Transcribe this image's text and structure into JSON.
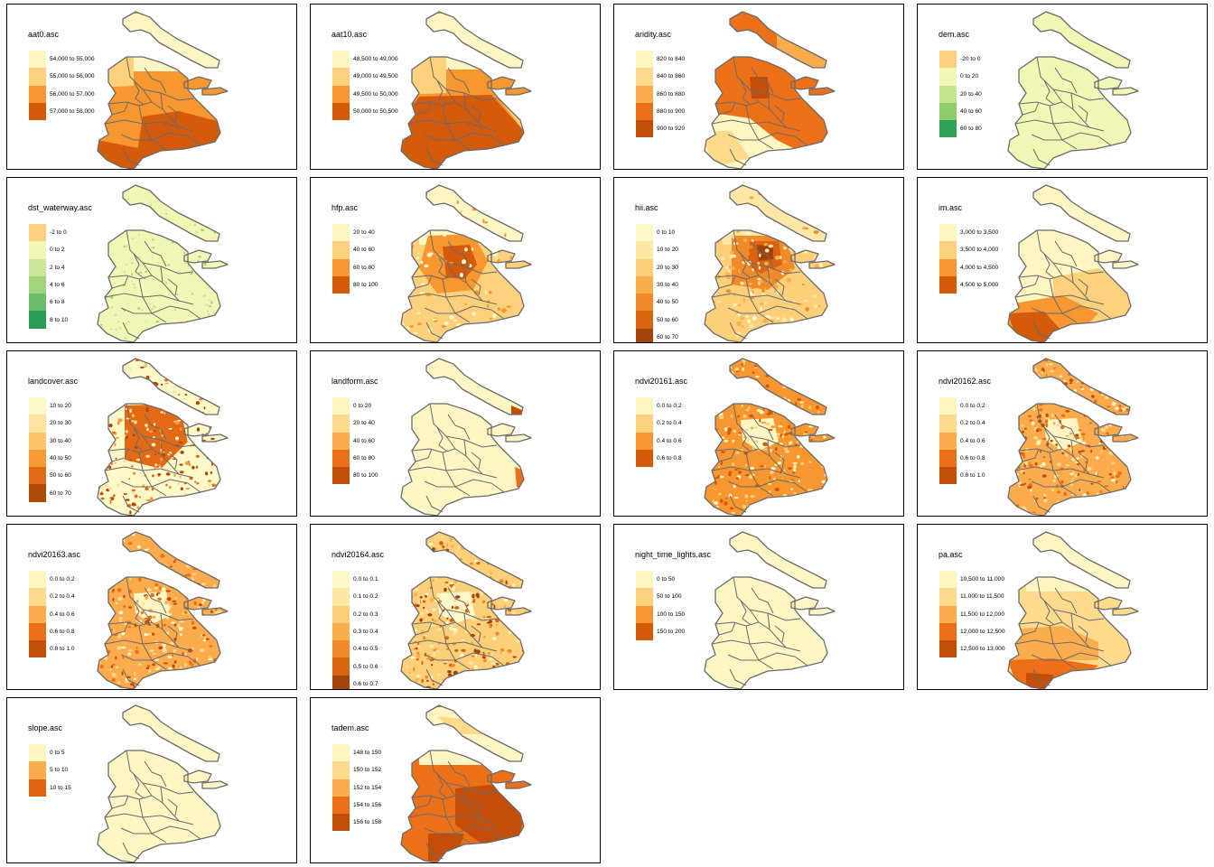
{
  "figure": {
    "panels": [
      {
        "title": "aat0.asc",
        "shading": "aat0",
        "legend": [
          {
            "label": "54,000 to 55,000",
            "color": "#fff6c4"
          },
          {
            "label": "55,000 to 56,000",
            "color": "#fdd17b"
          },
          {
            "label": "56,000 to 57,000",
            "color": "#f8962f"
          },
          {
            "label": "57,000 to 58,000",
            "color": "#d45a0c"
          }
        ]
      },
      {
        "title": "aat10.asc",
        "shading": "aat10",
        "legend": [
          {
            "label": "48,500 to 49,000",
            "color": "#fff6c4"
          },
          {
            "label": "49,000 to 49,500",
            "color": "#fdd17b"
          },
          {
            "label": "49,500 to 50,000",
            "color": "#f8962f"
          },
          {
            "label": "50,000 to 50,500",
            "color": "#d45a0c"
          }
        ]
      },
      {
        "title": "aridity.asc",
        "shading": "aridity",
        "legend": [
          {
            "label": "820 to 840",
            "color": "#fff6c4"
          },
          {
            "label": "840 to 860",
            "color": "#fedb8c"
          },
          {
            "label": "860 to 880",
            "color": "#fcac4d"
          },
          {
            "label": "880 to 900",
            "color": "#ec7018"
          },
          {
            "label": "900 to 920",
            "color": "#c44d08"
          }
        ]
      },
      {
        "title": "dem.asc",
        "shading": "dem",
        "legend": [
          {
            "label": "-20 to 0",
            "color": "#fdd080"
          },
          {
            "label": "0 to 20",
            "color": "#f3f7b6"
          },
          {
            "label": "20 to 40",
            "color": "#c3e38d"
          },
          {
            "label": "40 to 60",
            "color": "#8fcc6b"
          },
          {
            "label": "60 to 80",
            "color": "#2fa458"
          }
        ]
      },
      {
        "title": "dst_waterway.asc",
        "shading": "dst",
        "legend": [
          {
            "label": "-2 to 0",
            "color": "#fdd080"
          },
          {
            "label": "0 to 2",
            "color": "#f3f7b6"
          },
          {
            "label": "2 to 4",
            "color": "#c8e59a"
          },
          {
            "label": "4 to 6",
            "color": "#a3d47d"
          },
          {
            "label": "6 to 8",
            "color": "#6dbc6a"
          },
          {
            "label": "8 to 10",
            "color": "#2a9d57"
          }
        ]
      },
      {
        "title": "hfp.asc",
        "shading": "hfp",
        "legend": [
          {
            "label": "20 to 40",
            "color": "#fff6c4"
          },
          {
            "label": "40 to 60",
            "color": "#fdd17b"
          },
          {
            "label": "60 to 80",
            "color": "#f8962f"
          },
          {
            "label": "80 to 100",
            "color": "#d45a0c"
          }
        ]
      },
      {
        "title": "hii.asc",
        "shading": "hii",
        "legend": [
          {
            "label": "0 to 10",
            "color": "#fff8c8"
          },
          {
            "label": "10 to 20",
            "color": "#fee8a6"
          },
          {
            "label": "20 to 30",
            "color": "#fdcf79"
          },
          {
            "label": "30 to 40",
            "color": "#fbae4c"
          },
          {
            "label": "40 to 50",
            "color": "#f08a2a"
          },
          {
            "label": "50 to 60",
            "color": "#d9630f"
          },
          {
            "label": "60 to 70",
            "color": "#a3420a"
          }
        ]
      },
      {
        "title": "im.asc",
        "shading": "im",
        "legend": [
          {
            "label": "3,000 to 3,500",
            "color": "#fff6c4"
          },
          {
            "label": "3,500 to 4,000",
            "color": "#fdd17b"
          },
          {
            "label": "4,000 to 4,500",
            "color": "#f8962f"
          },
          {
            "label": "4,500 to 5,000",
            "color": "#d45a0c"
          }
        ]
      },
      {
        "title": "landcover.asc",
        "shading": "landcover",
        "legend": [
          {
            "label": "10 to 20",
            "color": "#fff8c8"
          },
          {
            "label": "20 to 30",
            "color": "#fee4a0"
          },
          {
            "label": "30 to 40",
            "color": "#fdc46a"
          },
          {
            "label": "40 to 50",
            "color": "#f89a35"
          },
          {
            "label": "50 to 60",
            "color": "#e36a14"
          },
          {
            "label": "60 to 70",
            "color": "#b04a08"
          }
        ]
      },
      {
        "title": "landform.asc",
        "shading": "landform",
        "legend": [
          {
            "label": "0 to 20",
            "color": "#fff6c4"
          },
          {
            "label": "20 to 40",
            "color": "#fedb8c"
          },
          {
            "label": "40 to 60",
            "color": "#fcac4d"
          },
          {
            "label": "60 to 80",
            "color": "#ec7018"
          },
          {
            "label": "80 to 100",
            "color": "#c44d08"
          }
        ]
      },
      {
        "title": "ndvi20161.asc",
        "shading": "ndvi1",
        "legend": [
          {
            "label": "0.0 to 0.2",
            "color": "#fff6c4"
          },
          {
            "label": "0.2 to 0.4",
            "color": "#fdd17b"
          },
          {
            "label": "0.4 to 0.6",
            "color": "#f8962f"
          },
          {
            "label": "0.6 to 0.8",
            "color": "#d45a0c"
          }
        ]
      },
      {
        "title": "ndvi20162.asc",
        "shading": "ndvi2",
        "legend": [
          {
            "label": "0.0 to 0.2",
            "color": "#fff6c4"
          },
          {
            "label": "0.2 to 0.4",
            "color": "#fedb8c"
          },
          {
            "label": "0.4 to 0.6",
            "color": "#fcac4d"
          },
          {
            "label": "0.6 to 0.8",
            "color": "#ec7018"
          },
          {
            "label": "0.8 to 1.0",
            "color": "#c44d08"
          }
        ]
      },
      {
        "title": "ndvi20163.asc",
        "shading": "ndvi3",
        "legend": [
          {
            "label": "0.0 to 0.2",
            "color": "#fff6c4"
          },
          {
            "label": "0.2 to 0.4",
            "color": "#fedb8c"
          },
          {
            "label": "0.4 to 0.6",
            "color": "#fcac4d"
          },
          {
            "label": "0.6 to 0.8",
            "color": "#ec7018"
          },
          {
            "label": "0.8 to 1.0",
            "color": "#c44d08"
          }
        ]
      },
      {
        "title": "ndvi20164.asc",
        "shading": "ndvi4",
        "legend": [
          {
            "label": "0.0 to 0.1",
            "color": "#fff8c8"
          },
          {
            "label": "0.1 to 0.2",
            "color": "#fee8a6"
          },
          {
            "label": "0.2 to 0.3",
            "color": "#fdcf79"
          },
          {
            "label": "0.3 to 0.4",
            "color": "#fbae4c"
          },
          {
            "label": "0.4 to 0.5",
            "color": "#f08a2a"
          },
          {
            "label": "0.5 to 0.6",
            "color": "#d9630f"
          },
          {
            "label": "0.6 to 0.7",
            "color": "#a3420a"
          }
        ]
      },
      {
        "title": "night_time_lights.asc",
        "shading": "ntl",
        "legend": [
          {
            "label": "0 to 50",
            "color": "#fff6c4"
          },
          {
            "label": "50 to 100",
            "color": "#fdd17b"
          },
          {
            "label": "100 to 150",
            "color": "#f8962f"
          },
          {
            "label": "150 to 200",
            "color": "#d45a0c"
          }
        ]
      },
      {
        "title": "pa.asc",
        "shading": "pa",
        "legend": [
          {
            "label": "10,500 to 11,000",
            "color": "#fff6c4"
          },
          {
            "label": "11,000 to 11,500",
            "color": "#fedb8c"
          },
          {
            "label": "11,500 to 12,000",
            "color": "#fcac4d"
          },
          {
            "label": "12,000 to 12,500",
            "color": "#ec7018"
          },
          {
            "label": "12,500 to 13,000",
            "color": "#c44d08"
          }
        ]
      },
      {
        "title": "slope.asc",
        "shading": "slope",
        "legend": [
          {
            "label": "0 to 5",
            "color": "#fff6c4"
          },
          {
            "label": "5 to 10",
            "color": "#fcac4d"
          },
          {
            "label": "10 to 15",
            "color": "#e06412"
          }
        ]
      },
      {
        "title": "tadem.asc",
        "shading": "tadem",
        "legend": [
          {
            "label": "148 to 150",
            "color": "#fff6c4"
          },
          {
            "label": "150 to 152",
            "color": "#fedb8c"
          },
          {
            "label": "152 to 154",
            "color": "#fcac4d"
          },
          {
            "label": "154 to 156",
            "color": "#ec7018"
          },
          {
            "label": "156 to 158",
            "color": "#c44d08"
          }
        ]
      }
    ]
  }
}
